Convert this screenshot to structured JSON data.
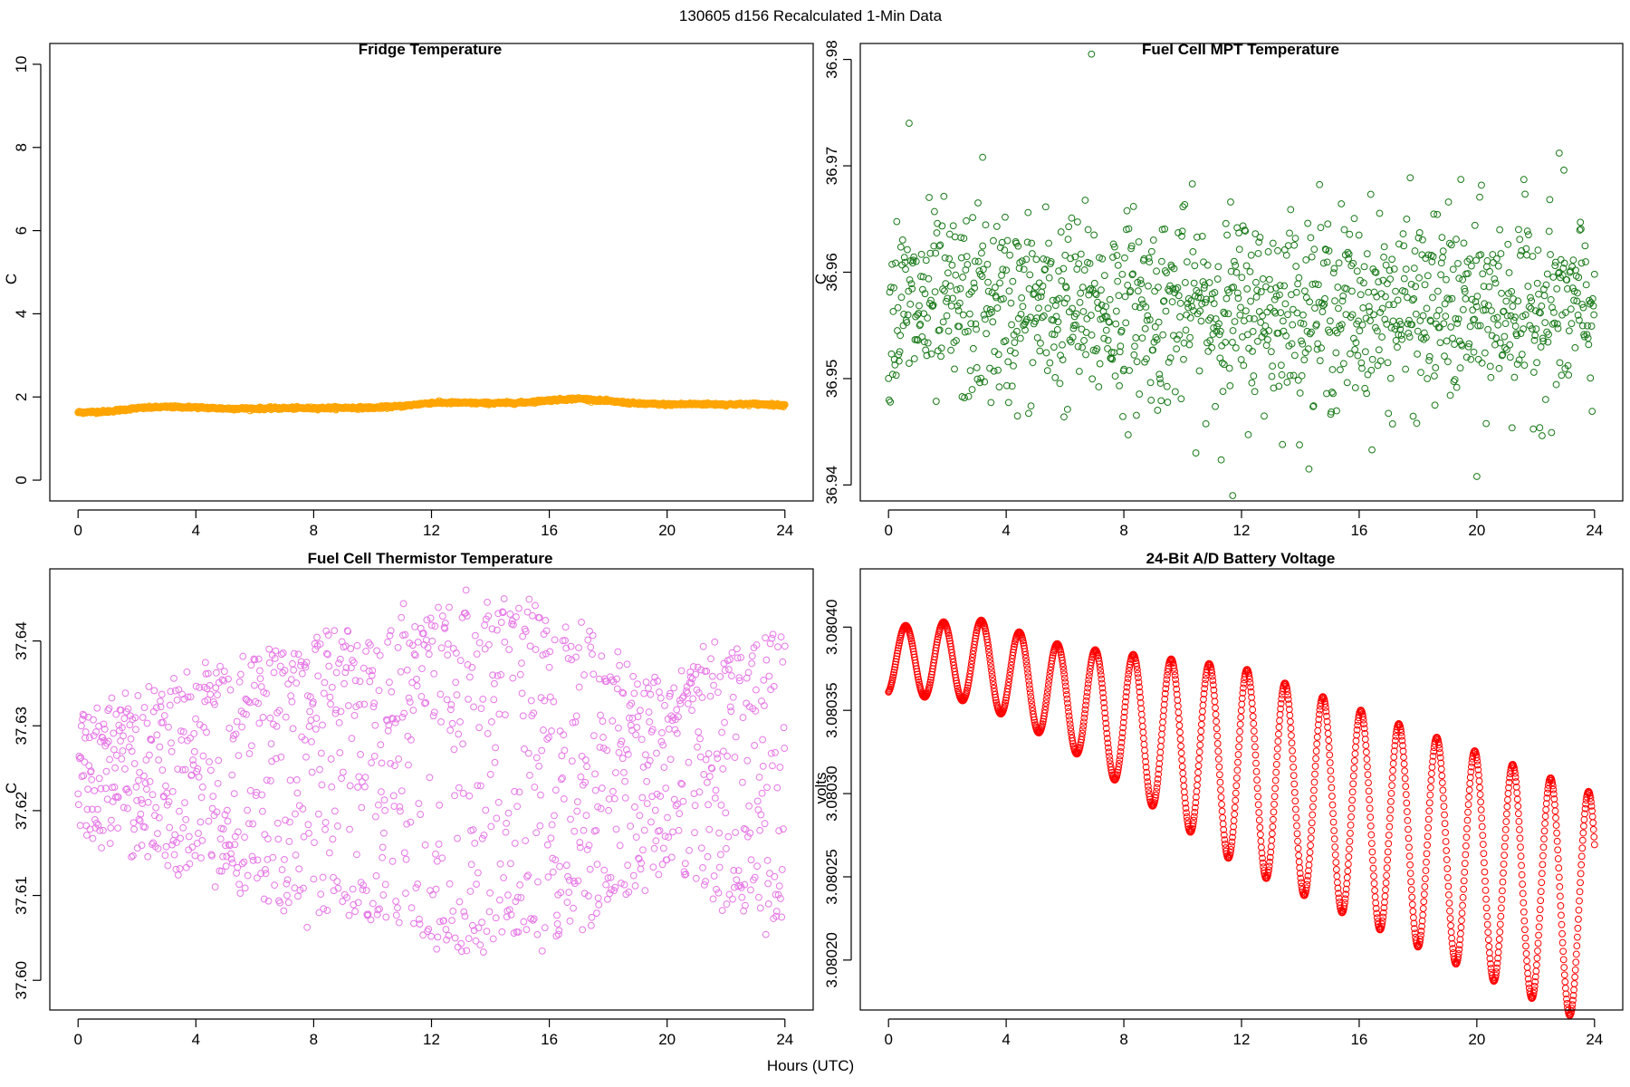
{
  "figure": {
    "title": "130605   d156   Recalculated 1-Min Data",
    "xlabel": "Hours (UTC)"
  },
  "chart_data": [
    {
      "id": "fridge",
      "type": "scatter",
      "title": "Fridge Temperature",
      "ylabel": "C",
      "xlim": [
        -0.96,
        24.96
      ],
      "ylim": [
        -0.5,
        10.5
      ],
      "xticks": [
        0,
        4,
        8,
        12,
        16,
        20,
        24
      ],
      "yticks": [
        0,
        2,
        4,
        6,
        8,
        10
      ],
      "ytick_labels": [
        "0",
        "2",
        "4",
        "6",
        "8",
        "10"
      ],
      "color": "#ffa500",
      "curve": [
        [
          0,
          1.63
        ],
        [
          1,
          1.65
        ],
        [
          2,
          1.73
        ],
        [
          3,
          1.76
        ],
        [
          4,
          1.75
        ],
        [
          5,
          1.72
        ],
        [
          6,
          1.72
        ],
        [
          7,
          1.73
        ],
        [
          8,
          1.73
        ],
        [
          9,
          1.74
        ],
        [
          10,
          1.74
        ],
        [
          11,
          1.78
        ],
        [
          12,
          1.86
        ],
        [
          13,
          1.86
        ],
        [
          14,
          1.85
        ],
        [
          15,
          1.86
        ],
        [
          16,
          1.92
        ],
        [
          17,
          1.96
        ],
        [
          18,
          1.9
        ],
        [
          19,
          1.84
        ],
        [
          20,
          1.82
        ],
        [
          21,
          1.83
        ],
        [
          22,
          1.82
        ],
        [
          23,
          1.83
        ],
        [
          24,
          1.8
        ]
      ],
      "noise": 0.015,
      "point_count": 1440
    },
    {
      "id": "mpt",
      "type": "scatter",
      "title": "Fuel Cell MPT Temperature",
      "ylabel": "C",
      "xlim": [
        -0.96,
        24.96
      ],
      "ylim": [
        36.9385,
        36.9815
      ],
      "xticks": [
        0,
        4,
        8,
        12,
        16,
        20,
        24
      ],
      "yticks": [
        36.94,
        36.95,
        36.96,
        36.97,
        36.98
      ],
      "ytick_labels": [
        "36.94",
        "36.95",
        "36.96",
        "36.97",
        "36.98"
      ],
      "color": "#1a7a1a",
      "center": 36.9565,
      "spread": 0.0045,
      "outliers": [
        [
          6.9,
          36.9805
        ],
        [
          0.7,
          36.974
        ],
        [
          11.7,
          36.939
        ],
        [
          20,
          36.9408
        ],
        [
          3.2,
          36.9708
        ],
        [
          22.8,
          36.9712
        ]
      ],
      "point_count": 1200
    },
    {
      "id": "thermistor",
      "type": "scatter",
      "title": "Fuel Cell Thermistor Temperature",
      "ylabel": "C",
      "xlim": [
        -0.96,
        24.96
      ],
      "ylim": [
        37.5965,
        37.6485
      ],
      "xticks": [
        0,
        4,
        8,
        12,
        16,
        20,
        24
      ],
      "yticks": [
        37.6,
        37.61,
        37.62,
        37.63,
        37.64
      ],
      "ytick_labels": [
        "37.60",
        "37.61",
        "37.62",
        "37.63",
        "37.64"
      ],
      "color": "#e678e6",
      "center": 37.624,
      "amplitude": [
        [
          0,
          0.006
        ],
        [
          4,
          0.011
        ],
        [
          8,
          0.015
        ],
        [
          13.5,
          0.02
        ],
        [
          17,
          0.017
        ],
        [
          20,
          0.011
        ],
        [
          24,
          0.017
        ]
      ],
      "period_hours": 1.3,
      "point_count": 1300
    },
    {
      "id": "battery",
      "type": "scatter",
      "title": "24-Bit A/D Battery Voltage",
      "ylabel": "volts",
      "xlim": [
        -0.96,
        24.96
      ],
      "ylim": [
        3.08017,
        3.080435
      ],
      "xticks": [
        0,
        4,
        8,
        12,
        16,
        20,
        24
      ],
      "yticks": [
        3.0802,
        3.08025,
        3.0803,
        3.08035,
        3.0804
      ],
      "ytick_labels": [
        "3.08020",
        "3.08025",
        "3.08030",
        "3.08035",
        "3.08040"
      ],
      "color": "#ff0000",
      "trend": [
        [
          0,
          3.08038
        ],
        [
          3,
          3.08038
        ],
        [
          24,
          3.08023
        ]
      ],
      "amplitude": [
        [
          0,
          2e-05
        ],
        [
          6,
          3e-05
        ],
        [
          12,
          6e-05
        ],
        [
          24,
          7e-05
        ]
      ],
      "period_hours": 1.29,
      "phase_hours": 0.58,
      "point_count": 1440
    }
  ]
}
